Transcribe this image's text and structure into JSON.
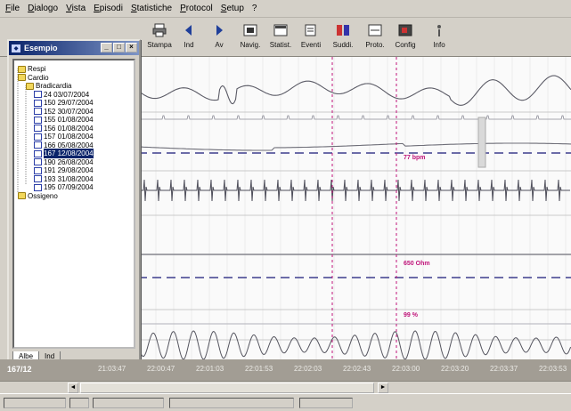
{
  "menu": [
    "File",
    "Dialogo",
    "Vista",
    "Episodi",
    "Statistiche",
    "Protocol",
    "Setup",
    "?"
  ],
  "toolbar": [
    {
      "label": "Stampa",
      "icon": "printer-icon"
    },
    {
      "label": "Ind",
      "icon": "arrow-left-icon"
    },
    {
      "label": "Av",
      "icon": "arrow-right-icon"
    },
    {
      "label": "Navig.",
      "icon": "navigator-icon"
    },
    {
      "label": "Statist.",
      "icon": "statistics-icon"
    },
    {
      "label": "Eventi",
      "icon": "events-icon"
    },
    {
      "label": "Suddi.",
      "icon": "subdivision-icon"
    },
    {
      "label": "Proto.",
      "icon": "protocol-icon"
    },
    {
      "label": "Config",
      "icon": "config-icon"
    },
    {
      "label": "Info",
      "icon": "info-icon"
    }
  ],
  "tree_window": {
    "title": "Esempio",
    "nodes": [
      {
        "label": "Respi",
        "type": "folder",
        "depth": 0
      },
      {
        "label": "Cardio",
        "type": "folder",
        "depth": 0
      },
      {
        "label": "Bradicardia",
        "type": "folder",
        "depth": 1
      },
      {
        "label": "24 03/07/2004",
        "type": "record",
        "depth": 2
      },
      {
        "label": "150 29/07/2004",
        "type": "record",
        "depth": 2
      },
      {
        "label": "152 30/07/2004",
        "type": "record",
        "depth": 2
      },
      {
        "label": "155 01/08/2004",
        "type": "record",
        "depth": 2
      },
      {
        "label": "156 01/08/2004",
        "type": "record",
        "depth": 2
      },
      {
        "label": "157 01/08/2004",
        "type": "record",
        "depth": 2
      },
      {
        "label": "166 05/08/2004",
        "type": "record",
        "depth": 2
      },
      {
        "label": "167 12/08/2004",
        "type": "record",
        "depth": 2,
        "selected": true
      },
      {
        "label": "190 26/08/2004",
        "type": "record",
        "depth": 2
      },
      {
        "label": "191 29/08/2004",
        "type": "record",
        "depth": 2
      },
      {
        "label": "193 31/08/2004",
        "type": "record",
        "depth": 2
      },
      {
        "label": "195 07/09/2004",
        "type": "record",
        "depth": 2
      },
      {
        "label": "Ossigeno",
        "type": "folder",
        "depth": 0
      }
    ],
    "tabs": [
      "Albe",
      "Ind"
    ]
  },
  "annotations": {
    "heart_rate": "77 bpm",
    "impedance": "650 Ohm",
    "saturation": "99 %"
  },
  "timebar": {
    "current": "167/12",
    "ticks": [
      "21:03:47",
      "22:00:47",
      "22:01:03",
      "22:01:53",
      "22:02:03",
      "22:02:43",
      "22:03:00",
      "22:03:20",
      "22:03:37",
      "22:03:53"
    ]
  },
  "colors": {
    "trace": "#5b5b66",
    "marker": "#c0147a",
    "dashed": "#3c3c8c",
    "selection": "#0a246a"
  }
}
